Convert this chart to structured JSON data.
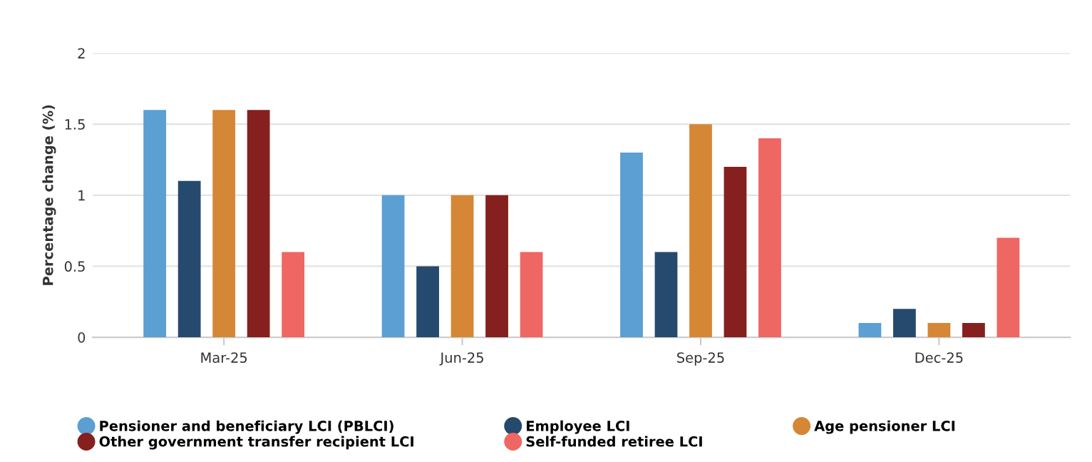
{
  "chart_data": {
    "type": "bar",
    "ylabel": "Percentage change (%)",
    "categories": [
      "Mar-25",
      "Jun-25",
      "Sep-25",
      "Dec-25"
    ],
    "series": [
      {
        "name": "Pensioner and beneficiary LCI (PBLCI)",
        "color": "#5b9fd3",
        "values": [
          1.6,
          1.0,
          1.3,
          0.1
        ]
      },
      {
        "name": "Employee LCI",
        "color": "#254a6d",
        "values": [
          1.1,
          0.5,
          0.6,
          0.2
        ]
      },
      {
        "name": "Age pensioner LCI",
        "color": "#d58736",
        "values": [
          1.6,
          1.0,
          1.5,
          0.1
        ]
      },
      {
        "name": "Other government transfer recipient LCI",
        "color": "#85201f",
        "values": [
          1.6,
          1.0,
          1.2,
          0.1
        ]
      },
      {
        "name": "Self-funded retiree LCI",
        "color": "#ee6763",
        "values": [
          0.6,
          0.6,
          1.4,
          0.7
        ]
      }
    ],
    "ylim": [
      0,
      2
    ],
    "yticks": [
      0,
      0.5,
      1,
      1.5,
      2
    ],
    "grid": "y",
    "legend": "bottom"
  }
}
